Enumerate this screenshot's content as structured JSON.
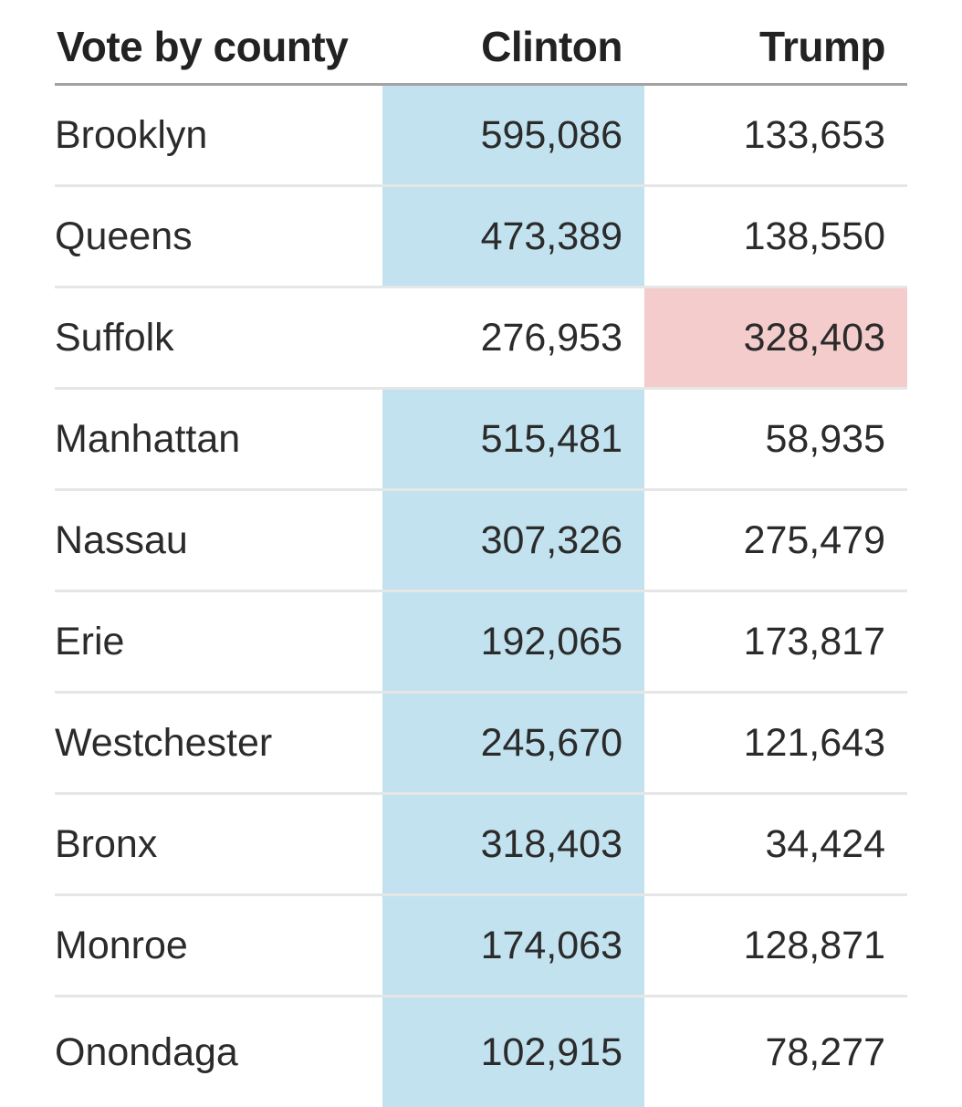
{
  "colors": {
    "clinton_win": "#c1e2ee",
    "trump_win": "#f4cccc"
  },
  "header": {
    "county": "Vote by county",
    "clinton": "Clinton",
    "trump": "Trump"
  },
  "chart_data": {
    "type": "table",
    "columns": [
      "Vote by county",
      "Clinton",
      "Trump"
    ],
    "rows": [
      {
        "county": "Brooklyn",
        "clinton": "595,086",
        "trump": "133,653",
        "winner": "clinton"
      },
      {
        "county": "Queens",
        "clinton": "473,389",
        "trump": "138,550",
        "winner": "clinton"
      },
      {
        "county": "Suffolk",
        "clinton": "276,953",
        "trump": "328,403",
        "winner": "trump"
      },
      {
        "county": "Manhattan",
        "clinton": "515,481",
        "trump": "58,935",
        "winner": "clinton"
      },
      {
        "county": "Nassau",
        "clinton": "307,326",
        "trump": "275,479",
        "winner": "clinton"
      },
      {
        "county": "Erie",
        "clinton": "192,065",
        "trump": "173,817",
        "winner": "clinton"
      },
      {
        "county": "Westchester",
        "clinton": "245,670",
        "trump": "121,643",
        "winner": "clinton"
      },
      {
        "county": "Bronx",
        "clinton": "318,403",
        "trump": "34,424",
        "winner": "clinton"
      },
      {
        "county": "Monroe",
        "clinton": "174,063",
        "trump": "128,871",
        "winner": "clinton"
      },
      {
        "county": "Onondaga",
        "clinton": "102,915",
        "trump": "78,277",
        "winner": "clinton"
      }
    ]
  }
}
